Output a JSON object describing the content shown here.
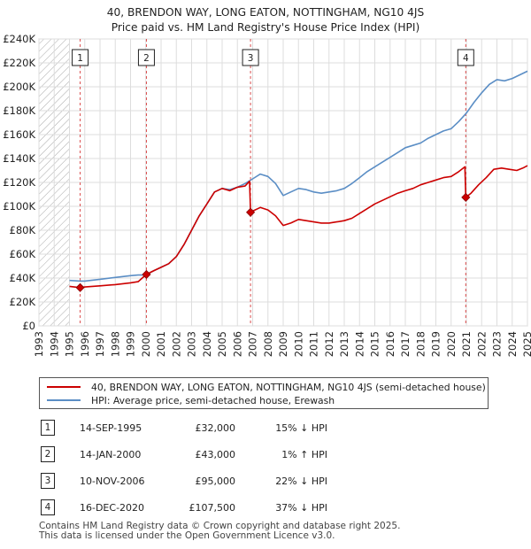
{
  "title": {
    "line1": "40, BRENDON WAY, LONG EATON, NOTTINGHAM, NG10 4JS",
    "line2": "Price paid vs. HM Land Registry's House Price Index (HPI)"
  },
  "colors": {
    "price_line": "#cc0000",
    "hpi_line": "#5b8ec5",
    "marker": "#cc0000",
    "vline": "#cc0000",
    "hatch": "#aaaaaa"
  },
  "legend": {
    "price_label": "40, BRENDON WAY, LONG EATON, NOTTINGHAM, NG10 4JS (semi-detached house)",
    "hpi_label": "HPI: Average price, semi-detached house, Erewash"
  },
  "transactions": [
    {
      "num": "1",
      "date": "14-SEP-1995",
      "price": "£32,000",
      "hpi": "15% ↓ HPI"
    },
    {
      "num": "2",
      "date": "14-JAN-2000",
      "price": "£43,000",
      "hpi": "1% ↑ HPI"
    },
    {
      "num": "3",
      "date": "10-NOV-2006",
      "price": "£95,000",
      "hpi": "22% ↓ HPI"
    },
    {
      "num": "4",
      "date": "16-DEC-2020",
      "price": "£107,500",
      "hpi": "37% ↓ HPI"
    }
  ],
  "footer": {
    "line1": "Contains HM Land Registry data © Crown copyright and database right 2025.",
    "line2": "This data is licensed under the Open Government Licence v3.0."
  },
  "chart_data": {
    "type": "line",
    "xlabel": "",
    "ylabel": "",
    "xlim": [
      1993,
      2025
    ],
    "ylim": [
      0,
      240000
    ],
    "x_ticks": [
      "1993",
      "1994",
      "1995",
      "1996",
      "1997",
      "1998",
      "1999",
      "2000",
      "2001",
      "2002",
      "2003",
      "2004",
      "2005",
      "2006",
      "2007",
      "2008",
      "2009",
      "2010",
      "2011",
      "2012",
      "2013",
      "2014",
      "2015",
      "2016",
      "2017",
      "2018",
      "2019",
      "2020",
      "2021",
      "2022",
      "2023",
      "2024",
      "2025"
    ],
    "y_ticks": [
      0,
      20000,
      40000,
      60000,
      80000,
      100000,
      120000,
      140000,
      160000,
      180000,
      200000,
      220000,
      240000
    ],
    "y_tick_labels": [
      "£0",
      "£20K",
      "£40K",
      "£60K",
      "£80K",
      "£100K",
      "£120K",
      "£140K",
      "£160K",
      "£180K",
      "£200K",
      "£220K",
      "£240K"
    ],
    "hatched_region": [
      1993,
      1995
    ],
    "markers": [
      {
        "label": "1",
        "x": 1995.7,
        "y": 32000
      },
      {
        "label": "2",
        "x": 2000.04,
        "y": 43000
      },
      {
        "label": "3",
        "x": 2006.86,
        "y": 95000
      },
      {
        "label": "4",
        "x": 2020.96,
        "y": 107500
      }
    ],
    "series": [
      {
        "name": "40, BRENDON WAY, LONG EATON, NOTTINGHAM, NG10 4JS (semi-detached house)",
        "x": [
          1995.0,
          1995.7,
          1996.0,
          1997.0,
          1998.0,
          1999.0,
          1999.5,
          2000.04,
          2000.5,
          2001.0,
          2001.5,
          2002.0,
          2002.5,
          2003.0,
          2003.5,
          2004.0,
          2004.5,
          2005.0,
          2005.5,
          2006.0,
          2006.5,
          2006.8,
          2006.86,
          2007.0,
          2007.5,
          2008.0,
          2008.5,
          2009.0,
          2009.5,
          2010.0,
          2010.5,
          2011.0,
          2011.5,
          2012.0,
          2012.5,
          2013.0,
          2013.5,
          2014.0,
          2014.5,
          2015.0,
          2015.5,
          2016.0,
          2016.5,
          2017.0,
          2017.5,
          2018.0,
          2018.5,
          2019.0,
          2019.5,
          2020.0,
          2020.5,
          2020.9,
          2020.96,
          2021.3,
          2021.8,
          2022.3,
          2022.8,
          2023.3,
          2023.8,
          2024.3,
          2024.7,
          2025.0
        ],
        "y": [
          33000,
          32000,
          32500,
          33500,
          34500,
          36000,
          37000,
          43000,
          46000,
          49000,
          52000,
          58000,
          68000,
          80000,
          92000,
          102000,
          112000,
          115000,
          113000,
          116000,
          117000,
          121000,
          95000,
          96000,
          99000,
          97000,
          92000,
          84000,
          86000,
          89000,
          88000,
          87000,
          86000,
          86000,
          87000,
          88000,
          90000,
          94000,
          98000,
          102000,
          105000,
          108000,
          111000,
          113000,
          115000,
          118000,
          120000,
          122000,
          124000,
          125000,
          129000,
          133000,
          107500,
          111000,
          118000,
          124000,
          131000,
          132000,
          131000,
          130000,
          132000,
          134000
        ]
      },
      {
        "name": "HPI: Average price, semi-detached house, Erewash",
        "x": [
          1995.0,
          1995.7,
          1996.0,
          1997.0,
          1998.0,
          1999.0,
          1999.5,
          2000.0,
          2000.5,
          2001.0,
          2001.5,
          2002.0,
          2002.5,
          2003.0,
          2003.5,
          2004.0,
          2004.5,
          2005.0,
          2005.5,
          2006.0,
          2006.5,
          2007.0,
          2007.5,
          2008.0,
          2008.5,
          2009.0,
          2009.5,
          2010.0,
          2010.5,
          2011.0,
          2011.5,
          2012.0,
          2012.5,
          2013.0,
          2013.5,
          2014.0,
          2014.5,
          2015.0,
          2015.5,
          2016.0,
          2016.5,
          2017.0,
          2017.5,
          2018.0,
          2018.5,
          2019.0,
          2019.5,
          2020.0,
          2020.5,
          2021.0,
          2021.5,
          2022.0,
          2022.5,
          2023.0,
          2023.5,
          2024.0,
          2024.5,
          2025.0
        ],
        "y": [
          38000,
          37500,
          37500,
          39000,
          40500,
          42000,
          42500,
          42500,
          46000,
          49000,
          52000,
          58000,
          68000,
          80000,
          92000,
          102000,
          112000,
          115000,
          114000,
          116000,
          119000,
          123000,
          127000,
          125000,
          119000,
          109000,
          112000,
          115000,
          114000,
          112000,
          111000,
          112000,
          113000,
          115000,
          119000,
          124000,
          129000,
          133000,
          137000,
          141000,
          145000,
          149000,
          151000,
          153000,
          157000,
          160000,
          163000,
          165000,
          171000,
          178000,
          187000,
          195000,
          202000,
          206000,
          205000,
          207000,
          210000,
          213000
        ]
      }
    ]
  }
}
